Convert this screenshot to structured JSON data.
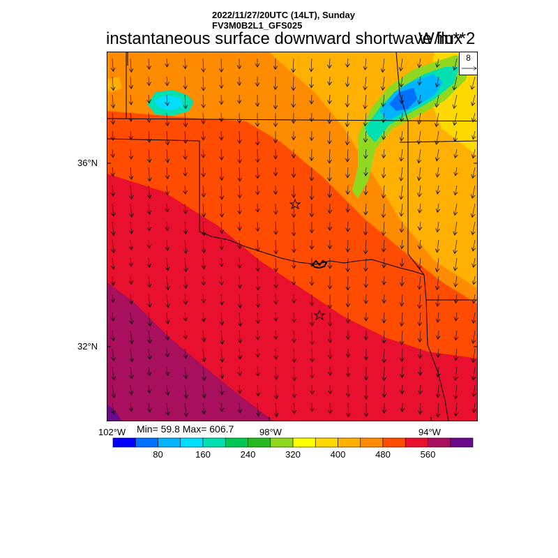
{
  "header": {
    "line1": "2022/11/27/20UTC (14LT), Sunday",
    "line2": "FV3M0B2L1_GFS025",
    "title": "instantaneous surface downward shortwave flux",
    "units": "W/m**2"
  },
  "vector_legend": {
    "value": "8"
  },
  "axes": {
    "lat_labels": [
      "36°N",
      "32°N"
    ],
    "lon_labels": [
      "102°W",
      "98°W",
      "94°W"
    ]
  },
  "stats": {
    "text": "Min= 59.8 Max= 606.7"
  },
  "colorbar": {
    "colors": [
      "#0000ff",
      "#0070ff",
      "#00b4ff",
      "#00ddff",
      "#00e0b0",
      "#00c850",
      "#28b820",
      "#90d820",
      "#ffff00",
      "#ffd800",
      "#ffb000",
      "#ff8c00",
      "#ff4c00",
      "#e8102e",
      "#a8105e",
      "#6a0a8a"
    ],
    "labels": [
      "80",
      "160",
      "240",
      "320",
      "400",
      "480",
      "560"
    ]
  },
  "markers": [
    "star",
    "star"
  ]
}
